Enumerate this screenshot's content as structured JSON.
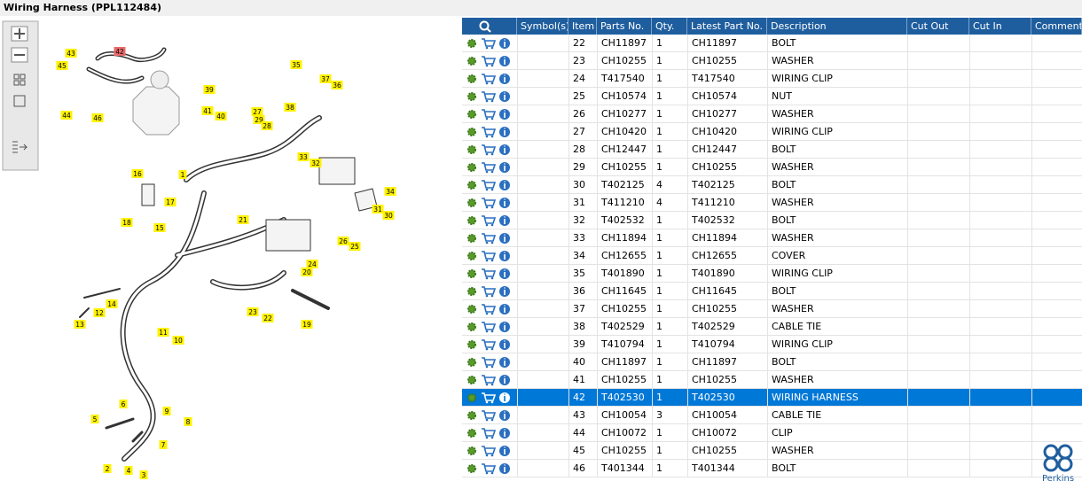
{
  "header": {
    "title": "Wiring Harness (PPL112484)"
  },
  "diagram": {
    "callouts": [
      {
        "label": "42",
        "highlighted": true
      },
      {
        "label": "43"
      },
      {
        "label": "45"
      },
      {
        "label": "44"
      },
      {
        "label": "46"
      },
      {
        "label": "39"
      },
      {
        "label": "41"
      },
      {
        "label": "40"
      },
      {
        "label": "27"
      },
      {
        "label": "29"
      },
      {
        "label": "28"
      },
      {
        "label": "35"
      },
      {
        "label": "37"
      },
      {
        "label": "36"
      },
      {
        "label": "38"
      },
      {
        "label": "33"
      },
      {
        "label": "32"
      },
      {
        "label": "34"
      },
      {
        "label": "31"
      },
      {
        "label": "30"
      },
      {
        "label": "16"
      },
      {
        "label": "1"
      },
      {
        "label": "17"
      },
      {
        "label": "18"
      },
      {
        "label": "15"
      },
      {
        "label": "21"
      },
      {
        "label": "26"
      },
      {
        "label": "25"
      },
      {
        "label": "24"
      },
      {
        "label": "20"
      },
      {
        "label": "14"
      },
      {
        "label": "12"
      },
      {
        "label": "13"
      },
      {
        "label": "23"
      },
      {
        "label": "22"
      },
      {
        "label": "19"
      },
      {
        "label": "11"
      },
      {
        "label": "10"
      },
      {
        "label": "6"
      },
      {
        "label": "9"
      },
      {
        "label": "5"
      },
      {
        "label": "8"
      },
      {
        "label": "7"
      },
      {
        "label": "2"
      },
      {
        "label": "4"
      },
      {
        "label": "3"
      }
    ]
  },
  "table": {
    "columns": [
      "Symbol(s)",
      "Item",
      "Parts No.",
      "Qty.",
      "Latest Part No.",
      "Description",
      "Cut Out",
      "Cut In",
      "Comment"
    ],
    "rows": [
      {
        "item": "22",
        "parts_no": "CH11897",
        "qty": "1",
        "latest_part_no": "CH11897",
        "description": "BOLT"
      },
      {
        "item": "23",
        "parts_no": "CH10255",
        "qty": "1",
        "latest_part_no": "CH10255",
        "description": "WASHER"
      },
      {
        "item": "24",
        "parts_no": "T417540",
        "qty": "1",
        "latest_part_no": "T417540",
        "description": "WIRING CLIP"
      },
      {
        "item": "25",
        "parts_no": "CH10574",
        "qty": "1",
        "latest_part_no": "CH10574",
        "description": "NUT"
      },
      {
        "item": "26",
        "parts_no": "CH10277",
        "qty": "1",
        "latest_part_no": "CH10277",
        "description": "WASHER"
      },
      {
        "item": "27",
        "parts_no": "CH10420",
        "qty": "1",
        "latest_part_no": "CH10420",
        "description": "WIRING CLIP"
      },
      {
        "item": "28",
        "parts_no": "CH12447",
        "qty": "1",
        "latest_part_no": "CH12447",
        "description": "BOLT"
      },
      {
        "item": "29",
        "parts_no": "CH10255",
        "qty": "1",
        "latest_part_no": "CH10255",
        "description": "WASHER"
      },
      {
        "item": "30",
        "parts_no": "T402125",
        "qty": "4",
        "latest_part_no": "T402125",
        "description": "BOLT"
      },
      {
        "item": "31",
        "parts_no": "T411210",
        "qty": "4",
        "latest_part_no": "T411210",
        "description": "WASHER"
      },
      {
        "item": "32",
        "parts_no": "T402532",
        "qty": "1",
        "latest_part_no": "T402532",
        "description": "BOLT"
      },
      {
        "item": "33",
        "parts_no": "CH11894",
        "qty": "1",
        "latest_part_no": "CH11894",
        "description": "WASHER"
      },
      {
        "item": "34",
        "parts_no": "CH12655",
        "qty": "1",
        "latest_part_no": "CH12655",
        "description": "COVER"
      },
      {
        "item": "35",
        "parts_no": "T401890",
        "qty": "1",
        "latest_part_no": "T401890",
        "description": "WIRING CLIP"
      },
      {
        "item": "36",
        "parts_no": "CH11645",
        "qty": "1",
        "latest_part_no": "CH11645",
        "description": "BOLT"
      },
      {
        "item": "37",
        "parts_no": "CH10255",
        "qty": "1",
        "latest_part_no": "CH10255",
        "description": "WASHER"
      },
      {
        "item": "38",
        "parts_no": "T402529",
        "qty": "1",
        "latest_part_no": "T402529",
        "description": "CABLE TIE"
      },
      {
        "item": "39",
        "parts_no": "T410794",
        "qty": "1",
        "latest_part_no": "T410794",
        "description": "WIRING CLIP"
      },
      {
        "item": "40",
        "parts_no": "CH11897",
        "qty": "1",
        "latest_part_no": "CH11897",
        "description": "BOLT"
      },
      {
        "item": "41",
        "parts_no": "CH10255",
        "qty": "1",
        "latest_part_no": "CH10255",
        "description": "WASHER"
      },
      {
        "item": "42",
        "parts_no": "T402530",
        "qty": "1",
        "latest_part_no": "T402530",
        "description": "WIRING HARNESS",
        "selected": true
      },
      {
        "item": "43",
        "parts_no": "CH10054",
        "qty": "3",
        "latest_part_no": "CH10054",
        "description": "CABLE TIE"
      },
      {
        "item": "44",
        "parts_no": "CH10072",
        "qty": "1",
        "latest_part_no": "CH10072",
        "description": "CLIP"
      },
      {
        "item": "45",
        "parts_no": "CH10255",
        "qty": "1",
        "latest_part_no": "CH10255",
        "description": "WASHER"
      },
      {
        "item": "46",
        "parts_no": "T401344",
        "qty": "1",
        "latest_part_no": "T401344",
        "description": "BOLT"
      }
    ]
  },
  "logo": {
    "text": "Perkins"
  }
}
